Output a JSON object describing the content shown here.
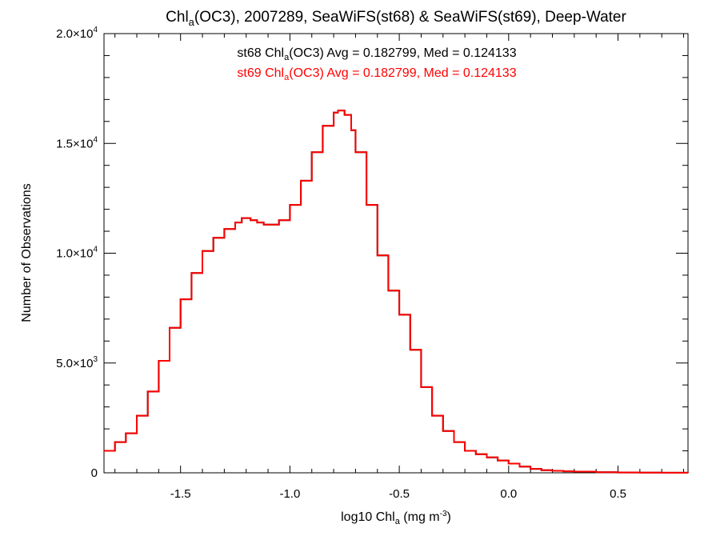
{
  "chart_data": {
    "type": "line",
    "title": {
      "pre": "Chl",
      "sub": "a",
      "post": "(OC3), 2007289, SeaWiFS(st68) & SeaWiFS(st69), Deep-Water"
    },
    "xlabel": {
      "pre": "log10 Chl",
      "sub": "a",
      "mid": " (mg m",
      "sup": "-3",
      "post": ")"
    },
    "ylabel": "Number of Observations",
    "xlim": [
      -1.85,
      0.82
    ],
    "ylim": [
      0,
      20000
    ],
    "x_ticks": [
      {
        "value": -1.5,
        "label": "-1.5"
      },
      {
        "value": -1.0,
        "label": "-1.0"
      },
      {
        "value": -0.5,
        "label": "-0.5"
      },
      {
        "value": 0.0,
        "label": "0.0"
      },
      {
        "value": 0.5,
        "label": "0.5"
      }
    ],
    "y_ticks": [
      {
        "value": 0,
        "mant": "0",
        "exp": ""
      },
      {
        "value": 5000,
        "mant": "5.0×10",
        "exp": "3"
      },
      {
        "value": 10000,
        "mant": "1.0×10",
        "exp": "4"
      },
      {
        "value": 15000,
        "mant": "1.5×10",
        "exp": "4"
      },
      {
        "value": 20000,
        "mant": "2.0×10",
        "exp": "4"
      }
    ],
    "annotations": [
      {
        "pre": "st68 Chl",
        "sub": "a",
        "post": "(OC3) Avg = 0.182799, Med = 0.124133",
        "color": "#000000"
      },
      {
        "pre": "st69 Chl",
        "sub": "a",
        "post": "(OC3) Avg = 0.182799, Med = 0.124133",
        "color": "#ff0000"
      }
    ],
    "series": [
      {
        "color": "#000000",
        "style": "steps"
      },
      {
        "color": "#ff0000",
        "style": "steps"
      }
    ],
    "x": [
      -1.85,
      -1.8,
      -1.75,
      -1.7,
      -1.65,
      -1.6,
      -1.55,
      -1.5,
      -1.45,
      -1.4,
      -1.35,
      -1.3,
      -1.25,
      -1.22,
      -1.2,
      -1.18,
      -1.15,
      -1.12,
      -1.1,
      -1.05,
      -1.0,
      -0.95,
      -0.9,
      -0.85,
      -0.8,
      -0.78,
      -0.75,
      -0.72,
      -0.7,
      -0.65,
      -0.6,
      -0.55,
      -0.5,
      -0.45,
      -0.4,
      -0.35,
      -0.3,
      -0.25,
      -0.2,
      -0.15,
      -0.1,
      -0.05,
      0.0,
      0.05,
      0.1,
      0.15,
      0.2,
      0.25,
      0.3,
      0.4,
      0.5,
      0.6,
      0.7,
      0.82
    ],
    "values": [
      1000,
      1400,
      1800,
      2600,
      3700,
      5100,
      6600,
      7900,
      9100,
      10100,
      10700,
      11100,
      11400,
      11600,
      11600,
      11500,
      11400,
      11300,
      11300,
      11500,
      12200,
      13300,
      14600,
      15800,
      16400,
      16500,
      16300,
      15600,
      14600,
      12200,
      9900,
      8300,
      7200,
      5600,
      3900,
      2600,
      1900,
      1400,
      1000,
      850,
      700,
      560,
      420,
      280,
      180,
      120,
      90,
      70,
      55,
      30,
      15,
      6,
      2,
      0
    ]
  }
}
